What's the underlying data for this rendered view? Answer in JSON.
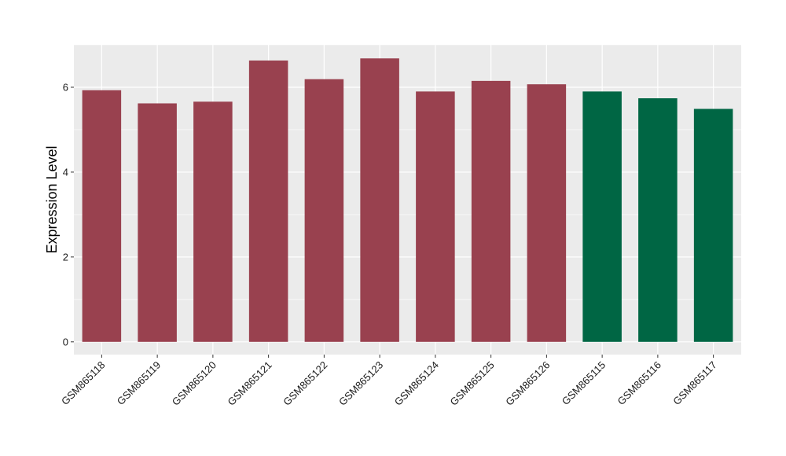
{
  "chart_data": {
    "type": "bar",
    "title": "",
    "xlabel": "",
    "ylabel": "Expression Level",
    "ylim": [
      -0.3,
      7.0
    ],
    "yticks": [
      0,
      2,
      4,
      6
    ],
    "ytick_labels": [
      "0",
      "2",
      "4",
      "6"
    ],
    "grid": true,
    "legend": "none",
    "categories": [
      "GSM865118",
      "GSM865119",
      "GSM865120",
      "GSM865121",
      "GSM865122",
      "GSM865123",
      "GSM865124",
      "GSM865125",
      "GSM865126",
      "GSM865115",
      "GSM865116",
      "GSM865117"
    ],
    "values": [
      5.93,
      5.62,
      5.66,
      6.63,
      6.19,
      6.68,
      5.9,
      6.15,
      6.07,
      5.9,
      5.74,
      5.49
    ],
    "bar_colors": [
      "#99414f",
      "#99414f",
      "#99414f",
      "#99414f",
      "#99414f",
      "#99414f",
      "#99414f",
      "#99414f",
      "#99414f",
      "#006644",
      "#006644",
      "#006644"
    ],
    "panel_background": "#ebebeb",
    "grid_color": "#ffffff"
  }
}
